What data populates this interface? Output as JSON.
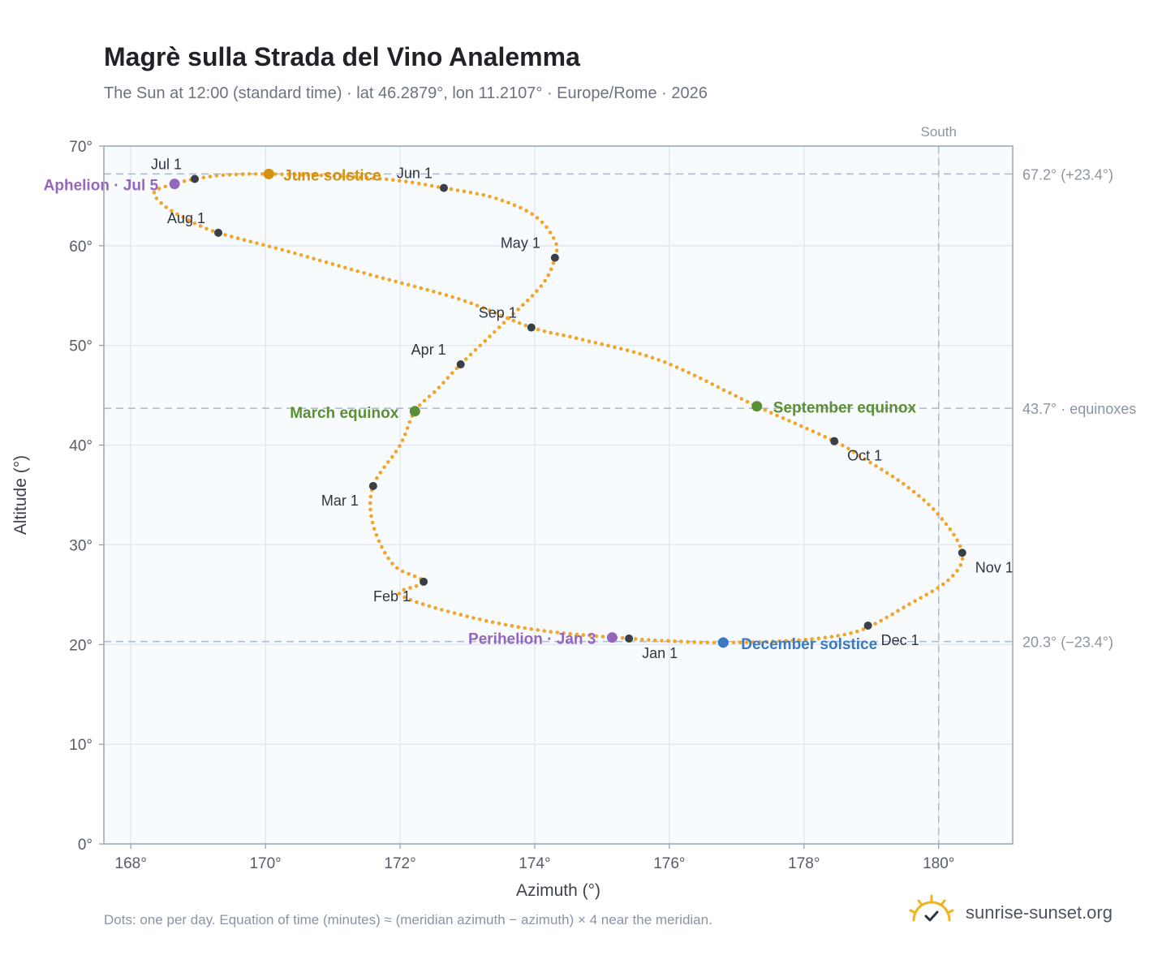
{
  "header": {
    "title": "Magrè sulla Strada del Vino Analemma",
    "subtitle": "The Sun at 12:00 (standard time) · lat 46.2879°, lon 11.2107° · Europe/Rome · 2026"
  },
  "footer": {
    "note": "Dots: one per day. Equation of time (minutes) ≈ (meridian azimuth − azimuth) × 4 near the meridian.",
    "brand": "sunrise-sunset.org"
  },
  "colors": {
    "path": "#f2a52a",
    "month_marker": "#3a3f47",
    "june_solstice": "#d4900f",
    "december_solstice": "#3b78c0",
    "equinox": "#5a8f33",
    "apsis": "#9467bd",
    "plot_bg": "#f8fbfd",
    "grid": "#e2e8ef",
    "reference_line": "#aab8c8"
  },
  "chart_data": {
    "type": "scatter",
    "xlabel": "Azimuth (°)",
    "ylabel": "Altitude (°)",
    "xlim": [
      167.6,
      181.1
    ],
    "ylim": [
      0,
      70
    ],
    "xticks": [
      168,
      170,
      172,
      174,
      176,
      178,
      180
    ],
    "yticks": [
      0,
      10,
      20,
      30,
      40,
      50,
      60,
      70
    ],
    "grid": true,
    "series": [
      {
        "points": [
          [
            175.4,
            20.6
          ],
          [
            174.1,
            21.4
          ],
          [
            172.95,
            22.9
          ],
          [
            172.0,
            25.0
          ],
          [
            172.35,
            26.3
          ],
          [
            171.9,
            28.0
          ],
          [
            171.6,
            32.0
          ],
          [
            171.6,
            35.9
          ],
          [
            172.0,
            40.0
          ],
          [
            172.22,
            43.4
          ],
          [
            172.55,
            45.6
          ],
          [
            172.9,
            48.1
          ],
          [
            173.5,
            52.0
          ],
          [
            174.1,
            56.0
          ],
          [
            174.3,
            58.8
          ],
          [
            174.3,
            60.5
          ],
          [
            174.0,
            63.0
          ],
          [
            173.4,
            64.8
          ],
          [
            172.65,
            65.8
          ],
          [
            171.9,
            66.6
          ],
          [
            171.0,
            67.0
          ],
          [
            170.05,
            67.2
          ],
          [
            169.4,
            67.1
          ],
          [
            168.95,
            66.7
          ],
          [
            168.65,
            66.2
          ],
          [
            168.35,
            65.4
          ],
          [
            168.5,
            64.0
          ],
          [
            168.85,
            62.6
          ],
          [
            169.3,
            61.3
          ],
          [
            170.3,
            59.5
          ],
          [
            171.5,
            57.2
          ],
          [
            172.9,
            54.6
          ],
          [
            173.95,
            51.8
          ],
          [
            174.7,
            50.6
          ],
          [
            175.9,
            48.4
          ],
          [
            177.3,
            43.9
          ],
          [
            178.45,
            40.4
          ],
          [
            178.9,
            38.6
          ],
          [
            179.5,
            36.0
          ],
          [
            180.0,
            33.0
          ],
          [
            180.35,
            29.2
          ],
          [
            180.15,
            26.5
          ],
          [
            179.5,
            23.8
          ],
          [
            179.0,
            21.9
          ],
          [
            178.6,
            21.0
          ],
          [
            177.85,
            20.4
          ],
          [
            176.8,
            20.2
          ],
          [
            176.2,
            20.3
          ],
          [
            175.4,
            20.6
          ]
        ]
      }
    ],
    "month_markers": [
      {
        "label": "Jan 1",
        "az": 175.4,
        "alt": 20.6
      },
      {
        "label": "Feb 1",
        "az": 172.35,
        "alt": 26.3
      },
      {
        "label": "Mar 1",
        "az": 171.6,
        "alt": 35.9
      },
      {
        "label": "Apr 1",
        "az": 172.9,
        "alt": 48.1
      },
      {
        "label": "May 1",
        "az": 174.3,
        "alt": 58.8
      },
      {
        "label": "Jun 1",
        "az": 172.65,
        "alt": 65.8
      },
      {
        "label": "Jul 1",
        "az": 168.95,
        "alt": 66.7
      },
      {
        "label": "Aug 1",
        "az": 169.3,
        "alt": 61.3
      },
      {
        "label": "Sep 1",
        "az": 173.95,
        "alt": 51.8
      },
      {
        "label": "Oct 1",
        "az": 178.45,
        "alt": 40.4
      },
      {
        "label": "Nov 1",
        "az": 180.35,
        "alt": 29.2
      },
      {
        "label": "Dec 1",
        "az": 178.95,
        "alt": 21.9
      }
    ],
    "events": [
      {
        "label": "June solstice",
        "az": 170.05,
        "alt": 67.2,
        "color_key": "june_solstice"
      },
      {
        "label": "December solstice",
        "az": 176.8,
        "alt": 20.2,
        "color_key": "december_solstice"
      },
      {
        "label": "March equinox",
        "az": 172.22,
        "alt": 43.4,
        "color_key": "equinox"
      },
      {
        "label": "September equinox",
        "az": 177.3,
        "alt": 43.9,
        "color_key": "equinox"
      },
      {
        "label": "Aphelion · Jul 5",
        "az": 168.65,
        "alt": 66.2,
        "color_key": "apsis"
      },
      {
        "label": "Perihelion · Jan 3",
        "az": 175.15,
        "alt": 20.7,
        "color_key": "apsis"
      }
    ],
    "reference_lines": {
      "horizontal": [
        {
          "alt": 67.2,
          "label": "67.2° (+23.4°)"
        },
        {
          "alt": 43.7,
          "label": "43.7° · equinoxes"
        },
        {
          "alt": 20.3,
          "label": "20.3° (−23.4°)"
        }
      ],
      "vertical": [
        {
          "az": 180,
          "label": "South"
        }
      ]
    }
  }
}
